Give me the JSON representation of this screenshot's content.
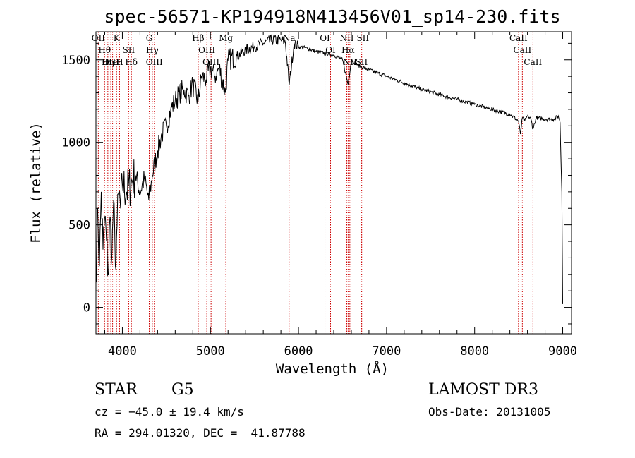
{
  "chart_data": {
    "type": "line",
    "title": "spec-56571-KP194918N413456V01_sp14-230.fits",
    "xlabel": "Wavelength (Å)",
    "ylabel": "Flux (relative)",
    "xlim": [
      3700,
      9100
    ],
    "ylim": [
      -160,
      1670
    ],
    "x_ticks": [
      4000,
      5000,
      6000,
      7000,
      8000,
      9000
    ],
    "y_ticks": [
      0,
      500,
      1000,
      1500
    ],
    "series": [
      {
        "x": [
          3700,
          3720,
          3740,
          3760,
          3780,
          3800,
          3820,
          3840,
          3860,
          3880,
          3900,
          3920,
          3940,
          3960,
          3980,
          4000,
          4050,
          4100,
          4150,
          4200,
          4250,
          4300,
          4340,
          4400,
          4450,
          4500,
          4550,
          4600,
          4650,
          4700,
          4750,
          4800,
          4860,
          4900,
          4950,
          5000,
          5050,
          5100,
          5170,
          5200,
          5300,
          5400,
          5500,
          5600,
          5700,
          5800,
          5850,
          5895,
          5950,
          6000,
          6100,
          6200,
          6300,
          6400,
          6500,
          6563,
          6600,
          6700,
          6800,
          6900,
          7000,
          7200,
          7400,
          7600,
          7800,
          8000,
          8200,
          8400,
          8498,
          8520,
          8542,
          8570,
          8600,
          8640,
          8662,
          8700,
          8800,
          8900,
          8950,
          8970,
          8990,
          9000
        ],
        "y": [
          150,
          600,
          250,
          700,
          350,
          550,
          400,
          200,
          550,
          300,
          650,
          250,
          500,
          700,
          600,
          750,
          700,
          750,
          800,
          700,
          780,
          650,
          800,
          950,
          1050,
          1100,
          1200,
          1250,
          1300,
          1320,
          1280,
          1350,
          1250,
          1400,
          1380,
          1450,
          1400,
          1450,
          1300,
          1500,
          1520,
          1560,
          1580,
          1600,
          1620,
          1620,
          1610,
          1350,
          1600,
          1580,
          1570,
          1550,
          1540,
          1530,
          1500,
          1350,
          1500,
          1460,
          1440,
          1420,
          1400,
          1360,
          1320,
          1290,
          1260,
          1230,
          1200,
          1170,
          1130,
          1050,
          1150,
          1130,
          1160,
          1140,
          1080,
          1150,
          1140,
          1140,
          1160,
          1120,
          700,
          20
        ]
      }
    ],
    "spectral_lines": [
      {
        "label": "Hθ",
        "x": 3798
      },
      {
        "label": "OII",
        "x": 3727
      },
      {
        "label": "OIII",
        "x": 3869
      },
      {
        "label": "K",
        "x": 3934
      },
      {
        "label": "HeI",
        "x": 3889
      },
      {
        "label": "Hη",
        "x": 3835
      },
      {
        "label": "H",
        "x": 3968
      },
      {
        "label": "SII",
        "x": 4072
      },
      {
        "label": "Hδ",
        "x": 4102
      },
      {
        "label": "OIII",
        "x": 4363
      },
      {
        "label": "Hγ",
        "x": 4340
      },
      {
        "label": "G",
        "x": 4305
      },
      {
        "label": "Hβ",
        "x": 4861
      },
      {
        "label": "OIII",
        "x": 4959
      },
      {
        "label": "OIII",
        "x": 5007
      },
      {
        "label": "Mg",
        "x": 5175
      },
      {
        "label": "Na",
        "x": 5893
      },
      {
        "label": "OI",
        "x": 6300
      },
      {
        "label": "OI",
        "x": 6364
      },
      {
        "label": "Hα",
        "x": 6563
      },
      {
        "label": "NII",
        "x": 6548
      },
      {
        "label": "NII",
        "x": 6583
      },
      {
        "label": "SII",
        "x": 6716
      },
      {
        "label": "SII",
        "x": 6731
      },
      {
        "label": "CaII",
        "x": 8498
      },
      {
        "label": "CaII",
        "x": 8542
      },
      {
        "label": "CaII",
        "x": 8662
      }
    ],
    "colors": {
      "spectrum": "#000000",
      "lines": "#cc0000",
      "frame": "#000000"
    }
  },
  "info": {
    "class_label": "STAR",
    "subclass": "G5",
    "survey": "LAMOST DR3",
    "cz": "cz = −45.0 ± 19.4 km/s",
    "obs_date": "Obs-Date: 20131005",
    "coords": "RA = 294.01320, DEC =  41.87788"
  }
}
